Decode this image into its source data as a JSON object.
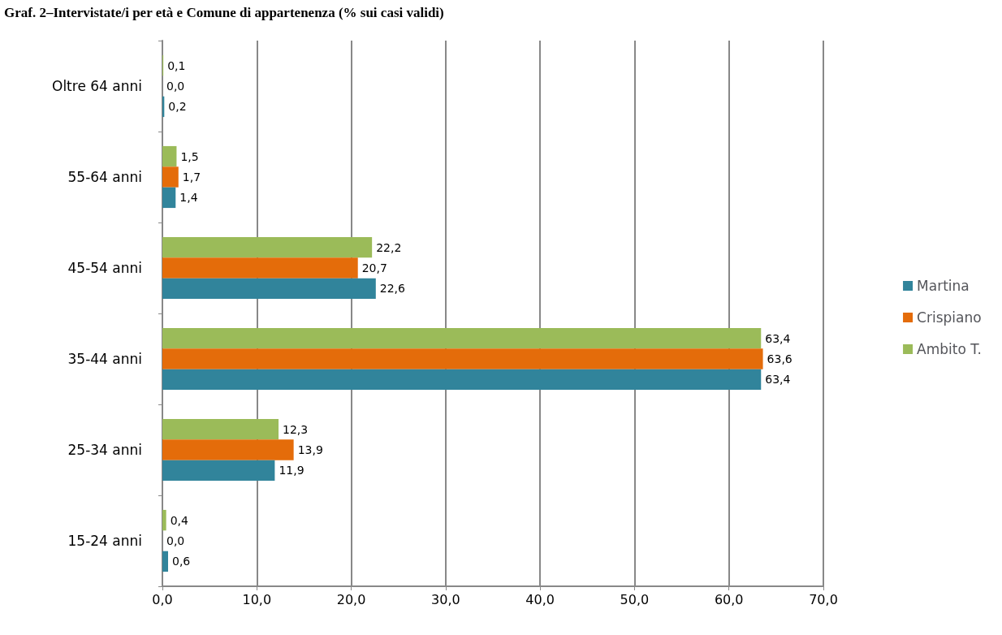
{
  "chart_data": {
    "type": "bar",
    "orientation": "horizontal",
    "title": "Graf. 2–Intervistate/i per età e Comune di appartenenza (% sui casi validi)",
    "categories": [
      "Oltre 64 anni",
      "55-64 anni",
      "45-54 anni",
      "35-44 anni",
      "25-34 anni",
      "15-24 anni"
    ],
    "series": [
      {
        "name": "Ambito T.",
        "color": "#9bbb59",
        "values": [
          0.1,
          1.5,
          22.2,
          63.4,
          12.3,
          0.4
        ],
        "value_labels": [
          "0,1",
          "1,5",
          "22,2",
          "63,4",
          "12,3",
          "0,4"
        ]
      },
      {
        "name": "Crispiano",
        "color": "#e46c0a",
        "values": [
          0.0,
          1.7,
          20.7,
          63.6,
          13.9,
          0.0
        ],
        "value_labels": [
          "0,0",
          "1,7",
          "20,7",
          "63,6",
          "13,9",
          "0,0"
        ]
      },
      {
        "name": "Martina",
        "color": "#31849b",
        "values": [
          0.2,
          1.4,
          22.6,
          63.4,
          11.9,
          0.6
        ],
        "value_labels": [
          "0,2",
          "1,4",
          "22,6",
          "63,4",
          "11,9",
          "0,6"
        ]
      }
    ],
    "xlim": [
      0,
      70
    ],
    "xticks": [
      {
        "value": 0,
        "label": "0,0"
      },
      {
        "value": 10,
        "label": "10,0"
      },
      {
        "value": 20,
        "label": "20,0"
      },
      {
        "value": 30,
        "label": "30,0"
      },
      {
        "value": 40,
        "label": "40,0"
      },
      {
        "value": 50,
        "label": "50,0"
      },
      {
        "value": 60,
        "label": "60,0"
      },
      {
        "value": 70,
        "label": "70,0"
      }
    ],
    "grid": "x",
    "legend": "right"
  }
}
